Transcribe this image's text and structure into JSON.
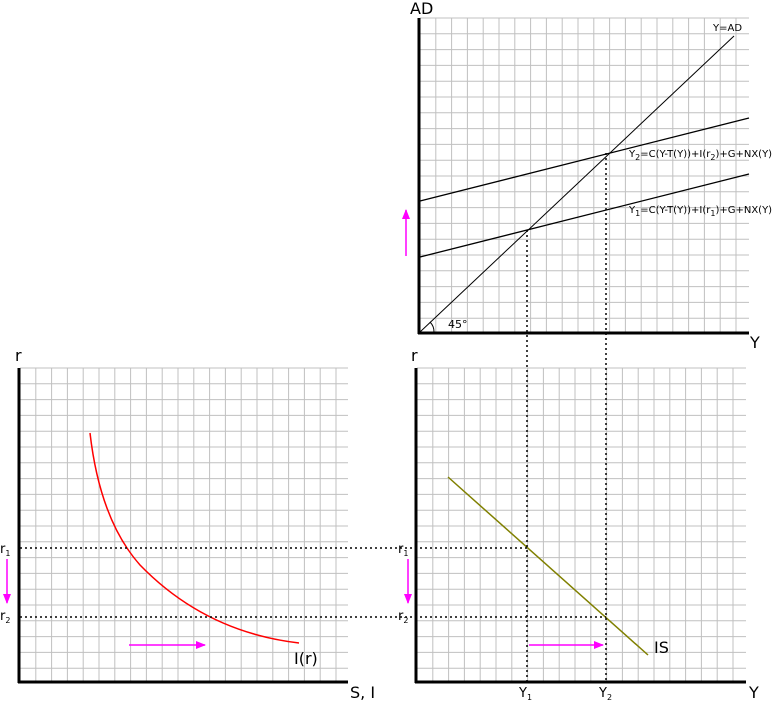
{
  "top_panel": {
    "y_axis_label": "AD",
    "x_axis_label": "Y",
    "line_45_label": "Y=AD",
    "angle_label": "45°",
    "ad2_label": {
      "pre": "Y",
      "pre_sub": "2",
      "mid": "=C(Y-T(Y))+I(r",
      "mid_sub": "2",
      "post": ")+G+NX(Y)"
    },
    "ad1_label": {
      "pre": "Y",
      "pre_sub": "1",
      "mid": "=C(Y-T(Y))+I(r",
      "mid_sub": "1",
      "post": ")+G+NX(Y)"
    }
  },
  "left_panel": {
    "y_axis_label": "r",
    "x_axis_label": "S, I",
    "curve_label": "I(r)",
    "r1": {
      "main": "r",
      "sub": "1"
    },
    "r2": {
      "main": "r",
      "sub": "2"
    }
  },
  "right_panel": {
    "y_axis_label": "r",
    "x_axis_label": "Y",
    "curve_label": "IS",
    "r1": {
      "main": "r",
      "sub": "1"
    },
    "r2": {
      "main": "r",
      "sub": "2"
    },
    "y1": {
      "main": "Y",
      "sub": "1"
    },
    "y2": {
      "main": "Y",
      "sub": "2"
    }
  },
  "colors": {
    "grid": "#c0c0c0",
    "axis": "#000000",
    "investment_curve": "#ff0000",
    "is_curve": "#808000",
    "arrows": "#ff00ff"
  }
}
